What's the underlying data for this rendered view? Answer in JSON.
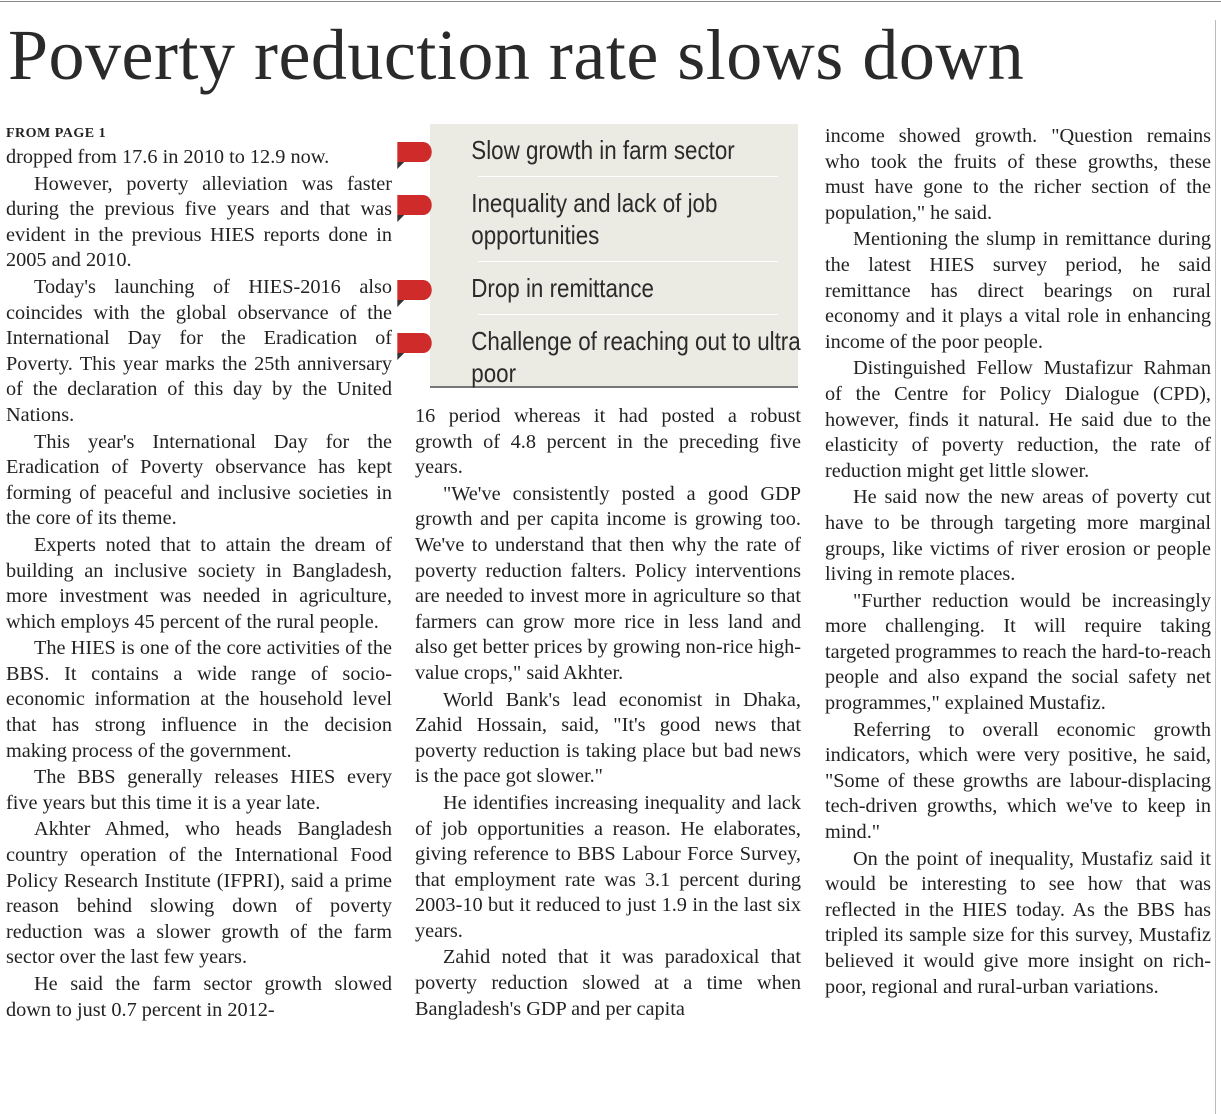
{
  "headline": "Poverty reduction rate slows down",
  "kicker": "FROM PAGE 1",
  "sidebar_box": {
    "items": [
      "Slow growth in farm sector",
      "Inequality and lack of job opportunities",
      "Drop in remittance",
      "Challenge of reaching out to ultra poor"
    ],
    "accent_color": "#cf2b2b"
  },
  "columns": [
    [
      "dropped from 17.6 in 2010 to 12.9 now.",
      "However, poverty alleviation was faster during the previous five years and that was evident in the previous HIES reports done in 2005 and 2010.",
      "Today's launching of HIES-2016 also coincides with the global observance of the International Day for the Eradication of Poverty. This year marks the 25th anniversary of the declaration of this day by the United Nations.",
      "This year's International Day for the Eradication of Poverty observance has kept forming of peaceful and inclusive societies in the core of its theme.",
      "Experts noted that to attain the dream of building an inclusive society in Bangladesh, more investment was needed in agriculture, which employs 45 percent of the rural people.",
      "The HIES is one of the core activities of the BBS. It contains a wide range of socio-economic information at the household level that has strong influence in the decision making process of the government.",
      "The BBS generally releases HIES every five years but this time it is a year late.",
      "Akhter Ahmed, who heads Bangladesh country operation of the International Food Policy Research Institute (IFPRI), said a prime reason behind slowing down of poverty reduction was a slower growth of the farm sector over the last few years.",
      "He said the farm sector growth slowed down to just 0.7 percent in 2012-"
    ],
    [
      "16 period whereas it had posted a robust growth of 4.8 percent in the preceding five years.",
      "\"We've consistently posted a good GDP growth and per capita income is growing too. We've to understand that then why the rate of poverty reduction falters. Policy interventions are needed to invest more in agriculture so that farmers can grow more rice in less land and also get better prices by growing non-rice high-value crops,\" said Akhter.",
      "World Bank's lead economist in Dhaka, Zahid Hossain, said, \"It's good news that poverty reduction is taking place but bad news is the pace got slower.\"",
      "He identifies increasing inequality and lack of job opportunities a reason. He elaborates, giving reference to BBS Labour Force Survey, that employment rate was 3.1 percent during 2003-10 but it reduced to just 1.9 in the last six years.",
      "Zahid noted that it was paradoxical that poverty reduction slowed at a time when Bangladesh's GDP and per capita"
    ],
    [
      "income showed growth. \"Question remains who took the fruits of these growths, these must have gone to the richer section of the population,\" he said.",
      "Mentioning the slump in remittance during the latest HIES survey period, he said remittance has direct bearings on rural economy and it plays a vital role in enhancing income of the poor people.",
      "Distinguished Fellow Mustafizur Rahman of the Centre for Policy Dialogue (CPD), however, finds it natural. He said due to the elasticity of poverty reduction, the rate of reduction might get little slower.",
      "He said now the new areas of poverty cut have to be through targeting more marginal groups, like victims of river erosion or people living in remote places.",
      "\"Further reduction would be increasingly more challenging. It will require taking targeted programmes to reach the hard-to-reach people and also expand the social safety net programmes,\" explained Mustafiz.",
      "Referring to overall economic growth indicators, which were very positive, he said, \"Some of these growths are labour-displacing tech-driven growths, which we've to keep in mind.\"",
      "On the point of inequality, Mustafiz said it would be interesting to see how that was reflected in the HIES today. As the BBS has tripled its sample size for this survey, Mustafiz believed it would give more insight on rich-poor, regional and rural-urban variations."
    ]
  ]
}
